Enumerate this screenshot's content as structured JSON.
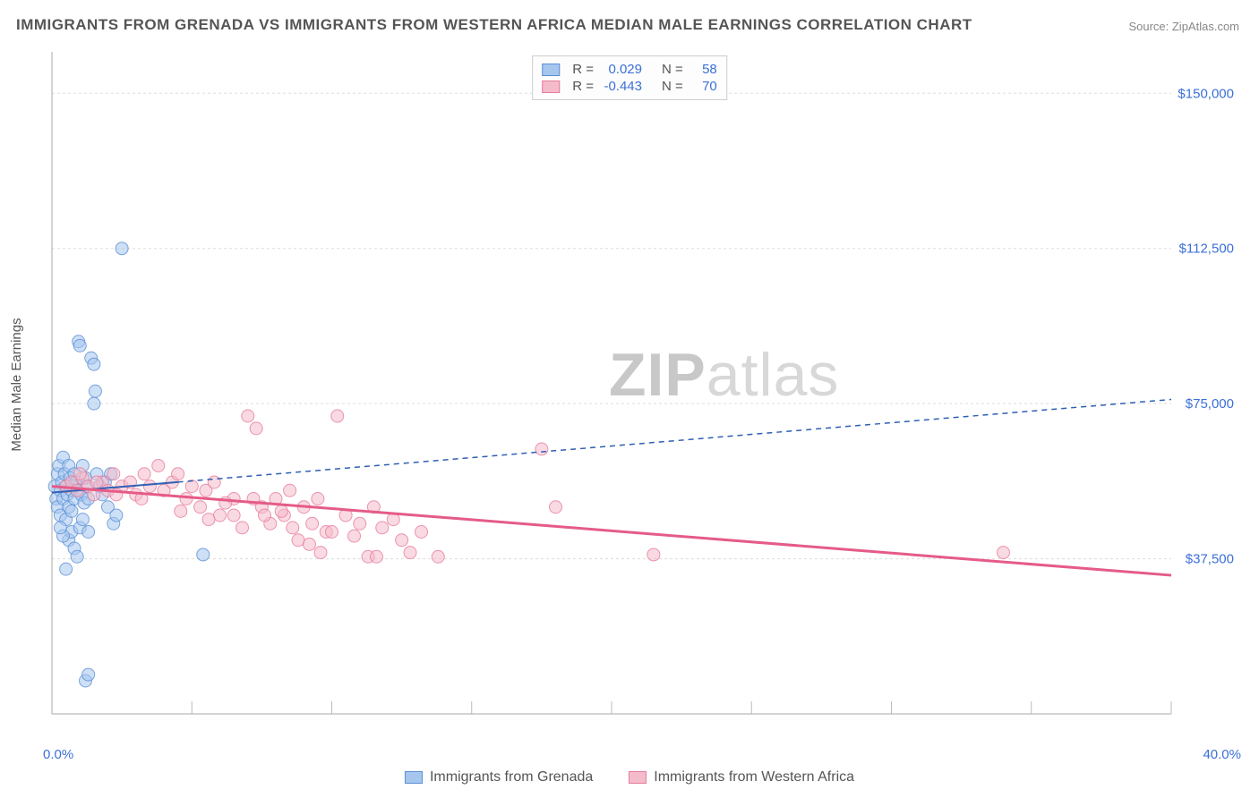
{
  "title": "IMMIGRANTS FROM GRENADA VS IMMIGRANTS FROM WESTERN AFRICA MEDIAN MALE EARNINGS CORRELATION CHART",
  "source": "Source: ZipAtlas.com",
  "watermark_bold": "ZIP",
  "watermark_light": "atlas",
  "ylabel": "Median Male Earnings",
  "chart": {
    "type": "scatter",
    "background_color": "#ffffff",
    "grid_color": "#dddddd",
    "axis_color": "#aaaaaa",
    "tick_color": "#bbbbbb",
    "label_color": "#3b6fd8",
    "xlim": [
      0,
      40
    ],
    "ylim": [
      0,
      160000
    ],
    "x_tick_step": 5,
    "y_gridlines": [
      37500,
      75000,
      112500,
      150000
    ],
    "y_tick_labels": [
      "$37,500",
      "$75,000",
      "$112,500",
      "$150,000"
    ],
    "x_min_label": "0.0%",
    "x_max_label": "40.0%",
    "marker_radius": 7,
    "marker_opacity": 0.55,
    "series": [
      {
        "name": "Immigrants from Grenada",
        "fill_color": "#a6c6ee",
        "stroke_color": "#5b8fd6",
        "r_value": "0.029",
        "n_value": "58",
        "trend": {
          "x1": 0,
          "y1": 53500,
          "x2": 40,
          "y2": 76000,
          "solid_until_x": 4.5,
          "color": "#2f5fb5",
          "width": 2,
          "dash": "6,5"
        },
        "points": [
          [
            0.1,
            55000
          ],
          [
            0.15,
            52000
          ],
          [
            0.2,
            58000
          ],
          [
            0.2,
            50000
          ],
          [
            0.25,
            60000
          ],
          [
            0.3,
            54000
          ],
          [
            0.3,
            48000
          ],
          [
            0.35,
            56000
          ],
          [
            0.4,
            62000
          ],
          [
            0.4,
            52000
          ],
          [
            0.45,
            58000
          ],
          [
            0.5,
            55000
          ],
          [
            0.5,
            47000
          ],
          [
            0.55,
            53000
          ],
          [
            0.6,
            60000
          ],
          [
            0.6,
            50000
          ],
          [
            0.65,
            57000
          ],
          [
            0.7,
            54000
          ],
          [
            0.7,
            49000
          ],
          [
            0.75,
            55000
          ],
          [
            0.8,
            58000
          ],
          [
            0.8,
            52000
          ],
          [
            0.85,
            56000
          ],
          [
            0.9,
            54000
          ],
          [
            0.95,
            90000
          ],
          [
            1.0,
            89000
          ],
          [
            1.05,
            53000
          ],
          [
            1.1,
            60000
          ],
          [
            1.15,
            51000
          ],
          [
            1.2,
            57000
          ],
          [
            1.25,
            55000
          ],
          [
            1.3,
            52000
          ],
          [
            1.4,
            86000
          ],
          [
            1.5,
            84500
          ],
          [
            1.5,
            75000
          ],
          [
            1.55,
            78000
          ],
          [
            1.6,
            58000
          ],
          [
            1.7,
            55000
          ],
          [
            1.8,
            53000
          ],
          [
            1.9,
            56000
          ],
          [
            2.0,
            50000
          ],
          [
            2.1,
            58000
          ],
          [
            2.2,
            46000
          ],
          [
            2.3,
            48000
          ],
          [
            0.6,
            42000
          ],
          [
            0.7,
            44000
          ],
          [
            0.8,
            40000
          ],
          [
            0.9,
            38000
          ],
          [
            0.5,
            35000
          ],
          [
            2.5,
            112500
          ],
          [
            1.2,
            8000
          ],
          [
            1.3,
            9500
          ],
          [
            1.0,
            45000
          ],
          [
            1.1,
            47000
          ],
          [
            1.3,
            44000
          ],
          [
            5.4,
            38500
          ],
          [
            0.4,
            43000
          ],
          [
            0.3,
            45000
          ]
        ]
      },
      {
        "name": "Immigrants from Western Africa",
        "fill_color": "#f4bccb",
        "stroke_color": "#e77a9c",
        "r_value": "-0.443",
        "n_value": "70",
        "trend": {
          "x1": 0,
          "y1": 55000,
          "x2": 40,
          "y2": 33500,
          "solid_until_x": 40,
          "color": "#e55b87",
          "width": 3,
          "dash": ""
        },
        "points": [
          [
            0.5,
            55000
          ],
          [
            0.7,
            56000
          ],
          [
            0.9,
            54000
          ],
          [
            1.1,
            57000
          ],
          [
            1.3,
            55000
          ],
          [
            1.5,
            53000
          ],
          [
            1.8,
            56000
          ],
          [
            2.0,
            54000
          ],
          [
            2.2,
            58000
          ],
          [
            2.5,
            55000
          ],
          [
            2.8,
            56000
          ],
          [
            3.0,
            53000
          ],
          [
            3.3,
            58000
          ],
          [
            3.5,
            55000
          ],
          [
            3.8,
            60000
          ],
          [
            4.0,
            54000
          ],
          [
            4.3,
            56000
          ],
          [
            4.5,
            58000
          ],
          [
            4.8,
            52000
          ],
          [
            5.0,
            55000
          ],
          [
            5.3,
            50000
          ],
          [
            5.5,
            54000
          ],
          [
            5.8,
            56000
          ],
          [
            6.0,
            48000
          ],
          [
            6.5,
            52000
          ],
          [
            7.0,
            72000
          ],
          [
            7.3,
            69000
          ],
          [
            7.5,
            50000
          ],
          [
            7.8,
            46000
          ],
          [
            8.0,
            52000
          ],
          [
            8.3,
            48000
          ],
          [
            8.5,
            54000
          ],
          [
            8.8,
            42000
          ],
          [
            9.0,
            50000
          ],
          [
            9.3,
            46000
          ],
          [
            9.5,
            52000
          ],
          [
            9.8,
            44000
          ],
          [
            10.2,
            72000
          ],
          [
            10.5,
            48000
          ],
          [
            11.0,
            46000
          ],
          [
            11.3,
            38000
          ],
          [
            11.5,
            50000
          ],
          [
            11.8,
            45000
          ],
          [
            12.2,
            47000
          ],
          [
            12.8,
            39000
          ],
          [
            13.2,
            44000
          ],
          [
            13.8,
            38000
          ],
          [
            6.5,
            48000
          ],
          [
            7.2,
            52000
          ],
          [
            8.6,
            45000
          ],
          [
            9.6,
            39000
          ],
          [
            10.0,
            44000
          ],
          [
            3.2,
            52000
          ],
          [
            4.6,
            49000
          ],
          [
            2.3,
            53000
          ],
          [
            1.6,
            56000
          ],
          [
            17.5,
            64000
          ],
          [
            18.0,
            50000
          ],
          [
            21.5,
            38500
          ],
          [
            6.8,
            45000
          ],
          [
            7.6,
            48000
          ],
          [
            9.2,
            41000
          ],
          [
            10.8,
            43000
          ],
          [
            11.6,
            38000
          ],
          [
            12.5,
            42000
          ],
          [
            5.6,
            47000
          ],
          [
            6.2,
            51000
          ],
          [
            8.2,
            49000
          ],
          [
            34.0,
            39000
          ],
          [
            1.0,
            58000
          ]
        ]
      }
    ]
  },
  "legend_bottom": [
    {
      "label": "Immigrants from Grenada",
      "fill": "#a6c6ee",
      "stroke": "#5b8fd6"
    },
    {
      "label": "Immigrants from Western Africa",
      "fill": "#f4bccb",
      "stroke": "#e77a9c"
    }
  ]
}
